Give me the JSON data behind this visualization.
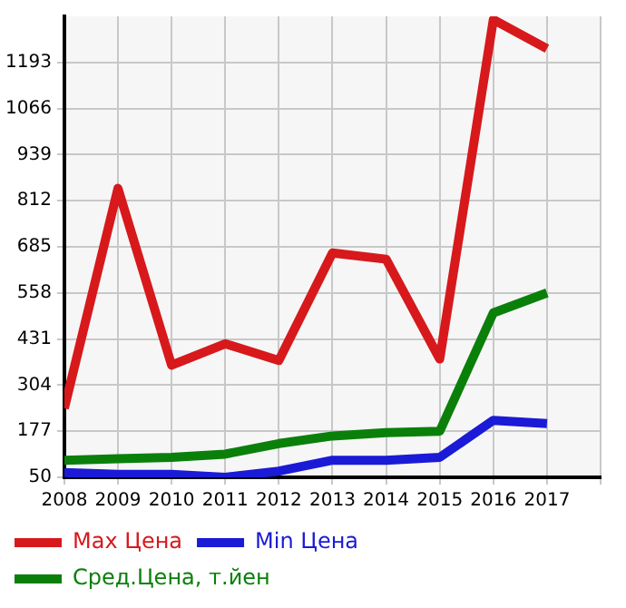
{
  "chart_data": {
    "type": "line",
    "x": [
      2008,
      2009,
      2010,
      2011,
      2012,
      2013,
      2014,
      2015,
      2016,
      2017
    ],
    "series": [
      {
        "name": "Max Цена",
        "color": "#d7191c",
        "values": [
          240,
          846,
          359,
          418,
          372,
          668,
          651,
          376,
          1311,
          1231
        ]
      },
      {
        "name": "Min Цена",
        "color": "#1a1ad7",
        "values": [
          63,
          58,
          58,
          50,
          67,
          97,
          97,
          105,
          207,
          198
        ]
      },
      {
        "name": "Сред.Цена, т.йен",
        "color": "#0a800a",
        "values": [
          97,
          101,
          105,
          114,
          143,
          164,
          173,
          177,
          503,
          558
        ]
      }
    ],
    "xlim": [
      2008,
      2018
    ],
    "xticks": [
      2008,
      2009,
      2010,
      2011,
      2012,
      2013,
      2014,
      2015,
      2016,
      2017,
      {
        "value": 2018,
        "label": null
      }
    ],
    "ylim": [
      50,
      1320
    ],
    "yticks": [
      50,
      177,
      304,
      431,
      558,
      685,
      812,
      939,
      1066,
      1193
    ],
    "grid": true,
    "legend": "bottom",
    "marker": "none",
    "line_style": "solid"
  }
}
